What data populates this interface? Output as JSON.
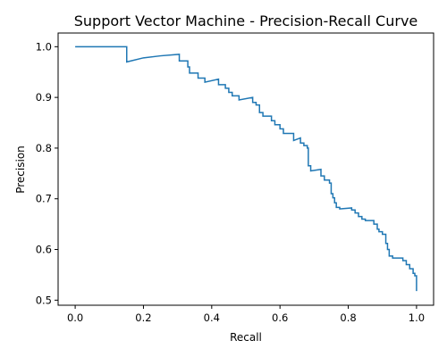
{
  "chart_data": {
    "type": "line",
    "title": "Support Vector Machine - Precision-Recall Curve",
    "xlabel": "Recall",
    "ylabel": "Precision",
    "xlim": [
      -0.05,
      1.05
    ],
    "ylim": [
      0.49,
      1.027
    ],
    "xticks": [
      0.0,
      0.2,
      0.4,
      0.6,
      0.8,
      1.0
    ],
    "xtick_labels": [
      "0.0",
      "0.2",
      "0.4",
      "0.6",
      "0.8",
      "1.0"
    ],
    "yticks": [
      0.5,
      0.6,
      0.7,
      0.8,
      0.9,
      1.0
    ],
    "ytick_labels": [
      "0.5",
      "0.6",
      "0.7",
      "0.8",
      "0.9",
      "1.0"
    ],
    "grid": false,
    "line_color": "#1f77b4",
    "series": [
      {
        "x": [
          0.0,
          0.151,
          0.151,
          0.2,
          0.25,
          0.305,
          0.305,
          0.33,
          0.33,
          0.335,
          0.335,
          0.36,
          0.36,
          0.38,
          0.38,
          0.42,
          0.42,
          0.44,
          0.44,
          0.45,
          0.45,
          0.46,
          0.46,
          0.48,
          0.48,
          0.52,
          0.52,
          0.53,
          0.53,
          0.54,
          0.54,
          0.55,
          0.55,
          0.575,
          0.575,
          0.585,
          0.585,
          0.6,
          0.6,
          0.61,
          0.61,
          0.64,
          0.64,
          0.66,
          0.66,
          0.67,
          0.67,
          0.68,
          0.68,
          0.683,
          0.683,
          0.69,
          0.69,
          0.72,
          0.72,
          0.73,
          0.73,
          0.745,
          0.745,
          0.75,
          0.75,
          0.755,
          0.755,
          0.76,
          0.76,
          0.765,
          0.765,
          0.775,
          0.775,
          0.81,
          0.81,
          0.82,
          0.82,
          0.83,
          0.83,
          0.84,
          0.84,
          0.85,
          0.85,
          0.875,
          0.875,
          0.885,
          0.885,
          0.89,
          0.89,
          0.9,
          0.9,
          0.91,
          0.91,
          0.915,
          0.915,
          0.92,
          0.92,
          0.93,
          0.93,
          0.96,
          0.96,
          0.97,
          0.97,
          0.98,
          0.98,
          0.99,
          0.99,
          0.995,
          0.995,
          1.0,
          1.0
        ],
        "y": [
          1.0,
          1.0,
          0.97,
          0.978,
          0.982,
          0.985,
          0.972,
          0.972,
          0.96,
          0.96,
          0.948,
          0.948,
          0.938,
          0.938,
          0.93,
          0.936,
          0.925,
          0.925,
          0.918,
          0.918,
          0.91,
          0.91,
          0.903,
          0.903,
          0.895,
          0.9,
          0.89,
          0.89,
          0.885,
          0.885,
          0.87,
          0.87,
          0.863,
          0.863,
          0.854,
          0.854,
          0.846,
          0.846,
          0.838,
          0.838,
          0.829,
          0.829,
          0.815,
          0.82,
          0.81,
          0.81,
          0.805,
          0.805,
          0.8,
          0.8,
          0.765,
          0.765,
          0.755,
          0.758,
          0.745,
          0.745,
          0.737,
          0.737,
          0.731,
          0.731,
          0.71,
          0.71,
          0.702,
          0.702,
          0.692,
          0.692,
          0.683,
          0.683,
          0.68,
          0.682,
          0.678,
          0.678,
          0.672,
          0.672,
          0.665,
          0.665,
          0.66,
          0.66,
          0.657,
          0.657,
          0.65,
          0.65,
          0.64,
          0.64,
          0.635,
          0.635,
          0.63,
          0.63,
          0.612,
          0.612,
          0.6,
          0.6,
          0.587,
          0.587,
          0.583,
          0.583,
          0.578,
          0.578,
          0.57,
          0.57,
          0.562,
          0.562,
          0.553,
          0.553,
          0.548,
          0.548,
          0.518
        ]
      }
    ]
  }
}
